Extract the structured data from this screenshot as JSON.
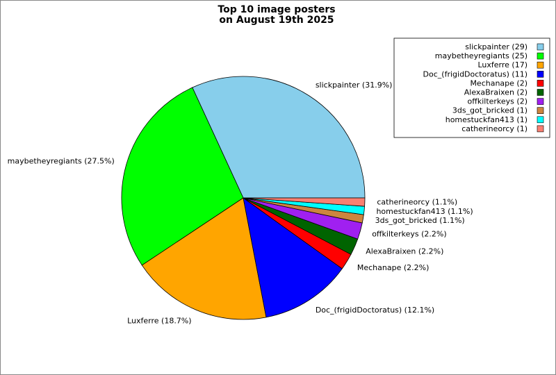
{
  "chart_data": {
    "type": "pie",
    "title": [
      "Top 10 image posters",
      "on August 19th 2025"
    ],
    "values": [
      29,
      25,
      17,
      11,
      2,
      2,
      2,
      1,
      1,
      1
    ],
    "labels": [
      "slickpainter (31.9%)",
      "maybetheyregiants (27.5%)",
      "Luxferre (18.7%)",
      "Doc_(frigidDoctoratus) (12.1%)",
      "Mechanape (2.2%)",
      "AlexaBraixen (2.2%)",
      "offkilterkeys (2.2%)",
      "3ds_got_bricked (1.1%)",
      "homestuckfan413 (1.1%)",
      "catherineorcy (1.1%)"
    ],
    "legend_labels": [
      "slickpainter (29)",
      "maybetheyregiants (25)",
      "Luxferre (17)",
      "Doc_(frigidDoctoratus) (11)",
      "Mechanape (2)",
      "AlexaBraixen (2)",
      "offkilterkeys (2)",
      "3ds_got_bricked (1)",
      "homestuckfan413 (1)",
      "catherineorcy (1)"
    ],
    "colors": [
      "#87ceeb",
      "#00ff00",
      "#ffa500",
      "#0000ff",
      "#ff0000",
      "#006400",
      "#a020f0",
      "#cd853f",
      "#00ffff",
      "#fa8072"
    ],
    "legend": "upper right"
  }
}
